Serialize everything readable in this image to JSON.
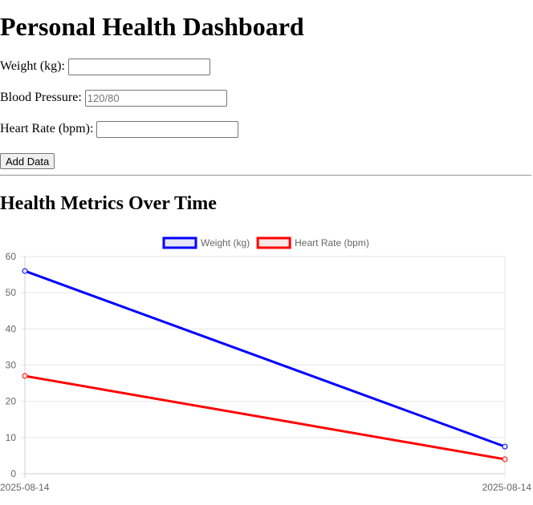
{
  "page_title": "Personal Health Dashboard",
  "form": {
    "weight_label": "Weight (kg):",
    "weight_value": "",
    "weight_placeholder": "",
    "bp_label": "Blood Pressure:",
    "bp_value": "",
    "bp_placeholder": "120/80",
    "hr_label": "Heart Rate (bpm):",
    "hr_value": "",
    "hr_placeholder": "",
    "add_button_label": "Add Data"
  },
  "section_title": "Health Metrics Over Time",
  "chart_data": {
    "type": "line",
    "categories": [
      "2025-08-14",
      "2025-08-14"
    ],
    "series": [
      {
        "name": "Weight (kg)",
        "values": [
          56,
          7.5
        ],
        "color": "#0000ff",
        "fill": "#e6e6f7"
      },
      {
        "name": "Heart Rate (bpm)",
        "values": [
          27,
          4
        ],
        "color": "#ff0000",
        "fill": "#f7e6e6"
      }
    ],
    "ylim": [
      0,
      60
    ],
    "yticks": [
      0,
      10,
      20,
      30,
      40,
      50,
      60
    ],
    "grid": true,
    "legend": "top-center"
  }
}
